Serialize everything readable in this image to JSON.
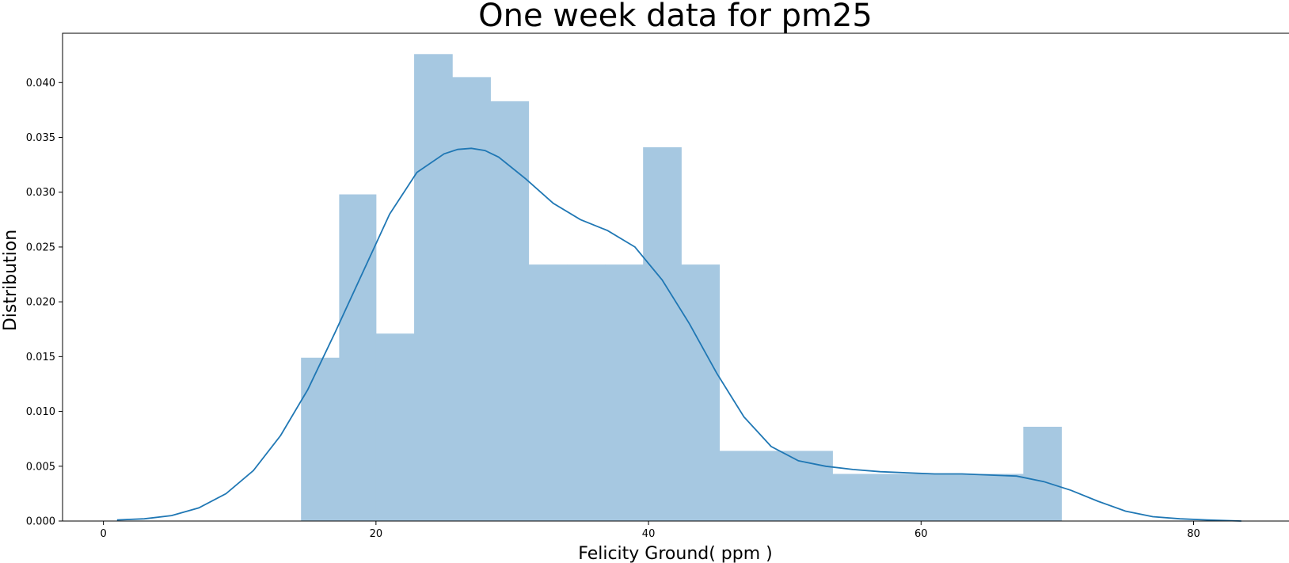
{
  "chart_data": {
    "type": "bar",
    "title": "One week data for pm25",
    "xlabel": "Felicity Ground( ppm )",
    "ylabel": "Distribution",
    "xlim": [
      -3,
      87
    ],
    "ylim": [
      0,
      0.0445
    ],
    "grid": false,
    "x_ticks": [
      0,
      20,
      40,
      60,
      80
    ],
    "x_tick_labels": [
      "0",
      "20",
      "40",
      "60",
      "80"
    ],
    "y_ticks": [
      0,
      0.005,
      0.01,
      0.015,
      0.02,
      0.025,
      0.03,
      0.035,
      0.04
    ],
    "y_tick_labels": [
      "0.000",
      "0.005",
      "0.010",
      "0.015",
      "0.020",
      "0.025",
      "0.030",
      "0.035",
      "0.040"
    ],
    "colors": {
      "bars": "#a6c8e1",
      "kde": "#1f77b4",
      "axes": "#000000"
    },
    "histogram": {
      "bin_edges": [
        14.5,
        17.3,
        20.0,
        22.8,
        25.6,
        28.4,
        31.2,
        34.0,
        36.8,
        39.6,
        42.4,
        45.2,
        47.9,
        50.7,
        53.5,
        56.3,
        59.1,
        61.9,
        64.7,
        67.5,
        70.3
      ],
      "values": [
        0.0149,
        0.0298,
        0.0171,
        0.0426,
        0.0405,
        0.0383,
        0.0234,
        0.0234,
        0.0234,
        0.0341,
        0.0234,
        0.0064,
        0.0064,
        0.0064,
        0.0043,
        0.0043,
        0.0043,
        0.0043,
        0.0043,
        0.0086
      ]
    },
    "series": [
      {
        "type": "line",
        "x": [
          1,
          3,
          5,
          7,
          9,
          11,
          13,
          15,
          17,
          19,
          21,
          23,
          25,
          26,
          27,
          28,
          29,
          31,
          33,
          35,
          37,
          39,
          41,
          43,
          45,
          47,
          49,
          51,
          53,
          55,
          57,
          59,
          61,
          63,
          65,
          67,
          69,
          71,
          73,
          75,
          77,
          79,
          81,
          83.5
        ],
        "y": [
          0.0001,
          0.0002,
          0.0005,
          0.0012,
          0.0025,
          0.0046,
          0.0078,
          0.012,
          0.0172,
          0.0226,
          0.028,
          0.0318,
          0.0335,
          0.0339,
          0.034,
          0.0338,
          0.0332,
          0.0312,
          0.029,
          0.0275,
          0.0265,
          0.025,
          0.022,
          0.018,
          0.0135,
          0.0095,
          0.0068,
          0.0055,
          0.005,
          0.0047,
          0.0045,
          0.0044,
          0.0043,
          0.0043,
          0.0042,
          0.0041,
          0.0036,
          0.0028,
          0.0018,
          0.0009,
          0.0004,
          0.0002,
          0.0001,
          0.0
        ]
      }
    ]
  }
}
